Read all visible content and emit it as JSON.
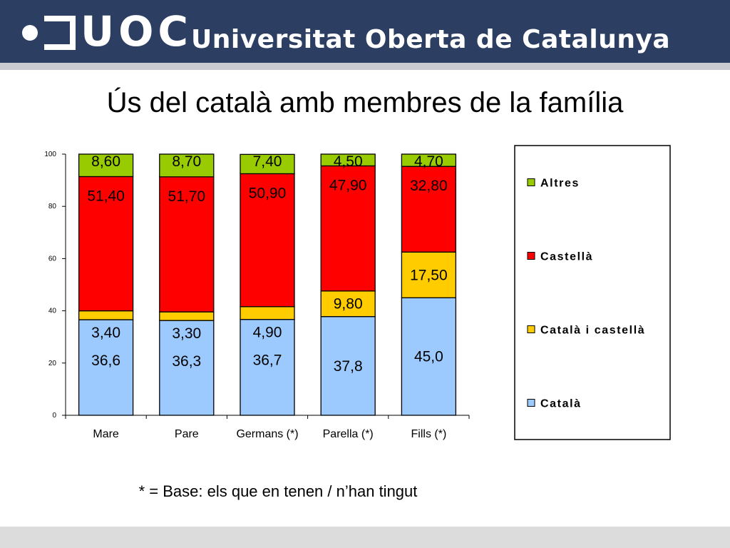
{
  "header": {
    "logo_text": "UOC",
    "university_name": "Universitat Oberta de Catalunya"
  },
  "slide": {
    "title": "Ús del català amb membres de la família",
    "footnote": "* = Base: els que en tenen / n’han tingut"
  },
  "colors": {
    "header_bg": "#2d3e63",
    "Català": "#9ccaff",
    "Català i castellà": "#ffcc00",
    "Castellà": "#ff0000",
    "Altres": "#99cc00"
  },
  "chart_data": {
    "type": "bar",
    "stacked": true,
    "categories": [
      "Mare",
      "Pare",
      "Germans (*)",
      "Parella (*)",
      "Fills (*)"
    ],
    "series": [
      {
        "name": "Català",
        "values": [
          36.6,
          36.3,
          36.7,
          37.8,
          45.0
        ],
        "labels": [
          "36,6",
          "36,3",
          "36,7",
          "37,8",
          "45,0"
        ]
      },
      {
        "name": "Català i castellà",
        "values": [
          3.4,
          3.3,
          4.9,
          9.8,
          17.5
        ],
        "labels": [
          "3,40",
          "3,30",
          "4,90",
          "9,80",
          "17,50"
        ]
      },
      {
        "name": "Castellà",
        "values": [
          51.4,
          51.7,
          50.9,
          47.9,
          32.8
        ],
        "labels": [
          "51,40",
          "51,70",
          "50,90",
          "47,90",
          "32,80"
        ]
      },
      {
        "name": "Altres",
        "values": [
          8.6,
          8.7,
          7.4,
          4.5,
          4.7
        ],
        "labels": [
          "8,60",
          "8,70",
          "7,40",
          "4,50",
          "4,70"
        ]
      }
    ],
    "ylim": [
      0,
      100
    ],
    "yticks": [
      "0",
      "20",
      "40",
      "60",
      "80",
      "100"
    ],
    "legend": {
      "placement": "right",
      "entries": [
        "Altres",
        "Castellà",
        "Català i castellà",
        "Català"
      ]
    },
    "grid": false
  }
}
